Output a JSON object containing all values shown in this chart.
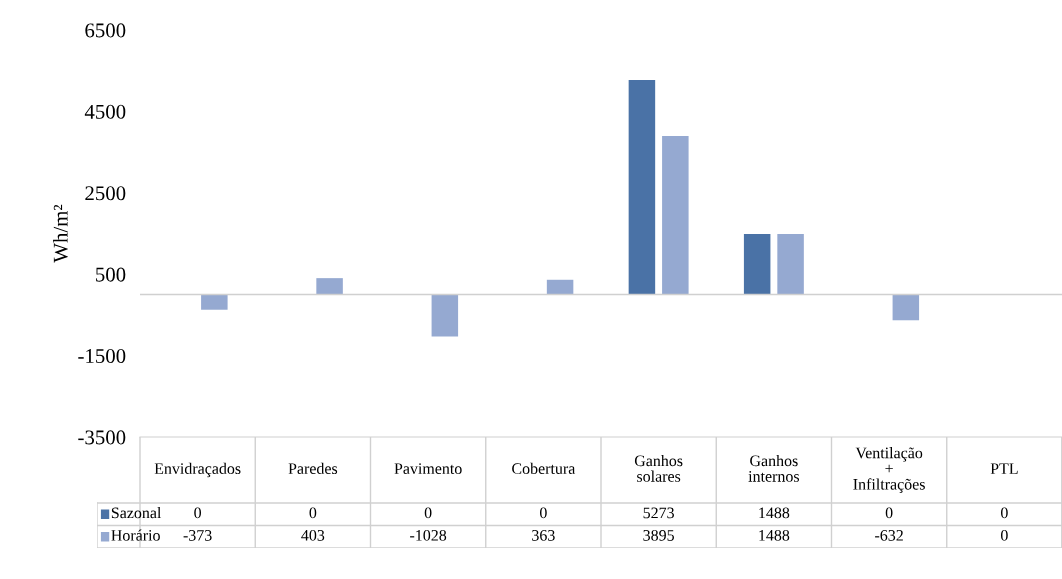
{
  "chart_data": {
    "type": "bar",
    "ylabel": "Wh/m²",
    "categories": [
      "Envidraçados",
      "Paredes",
      "Pavimento",
      "Cobertura",
      "Ganhos solares",
      "Ganhos internos",
      "Ventilação + Infiltrações",
      "PTL"
    ],
    "series": [
      {
        "name": "Sazonal",
        "color": "#4a72a6",
        "values": [
          0,
          0,
          0,
          0,
          5273,
          1488,
          0,
          0
        ]
      },
      {
        "name": "Horário",
        "color": "#95a9d1",
        "values": [
          -373,
          403,
          -1028,
          363,
          3895,
          1488,
          -632,
          0
        ]
      }
    ],
    "ylim": [
      -3500,
      6500
    ],
    "yticks": [
      -3500,
      -1500,
      500,
      2500,
      4500,
      6500
    ],
    "data_labels": true,
    "grid": false,
    "legend": "bottom"
  }
}
